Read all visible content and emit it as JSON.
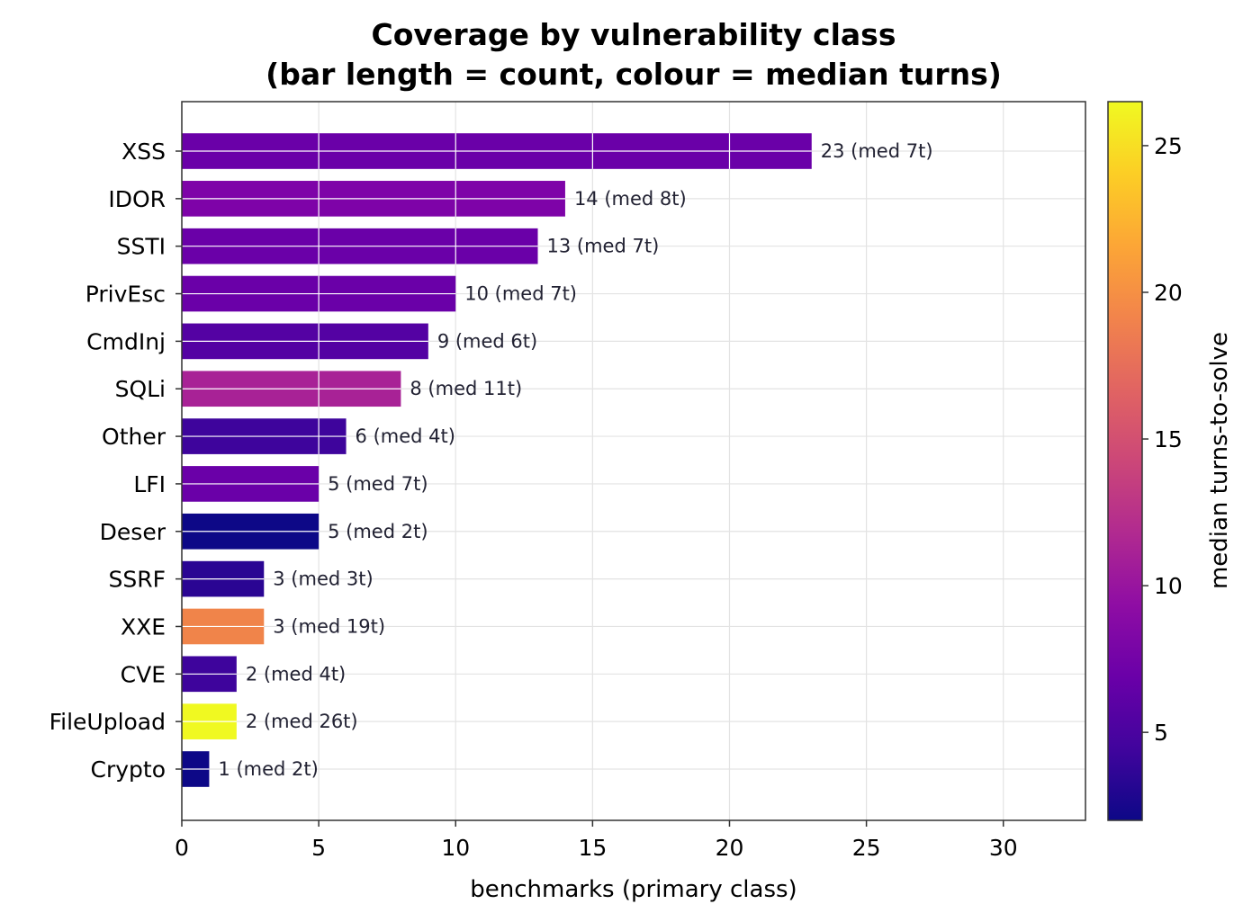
{
  "chart_data": {
    "type": "bar",
    "orientation": "horizontal",
    "title": "Coverage by vulnerability class",
    "subtitle": "(bar length = count, colour = median turns)",
    "xlabel": "benchmarks (primary class)",
    "ylabel": "",
    "xlim": [
      0,
      33
    ],
    "xticks": [
      0,
      5,
      10,
      15,
      20,
      25,
      30
    ],
    "grid": true,
    "colormap": "plasma",
    "colorbar": {
      "label": "median turns-to-solve",
      "range": [
        2,
        26.5
      ],
      "ticks": [
        5,
        10,
        15,
        20,
        25
      ]
    },
    "categories": [
      "XSS",
      "IDOR",
      "SSTI",
      "PrivEsc",
      "CmdInj",
      "SQLi",
      "Other",
      "LFI",
      "Deser",
      "SSRF",
      "XXE",
      "CVE",
      "FileUpload",
      "Crypto"
    ],
    "values": [
      23,
      14,
      13,
      10,
      9,
      8,
      6,
      5,
      5,
      3,
      3,
      2,
      2,
      1
    ],
    "median_turns": [
      7,
      8,
      7,
      7,
      6,
      11,
      4,
      7,
      2,
      3,
      19,
      4,
      26,
      2
    ],
    "bar_labels": [
      "23  (med 7t)",
      "14  (med 8t)",
      "13  (med 7t)",
      "10  (med 7t)",
      "9  (med 6t)",
      "8  (med 11t)",
      "6  (med 4t)",
      "5  (med 7t)",
      "5  (med 2t)",
      "3  (med 3t)",
      "3  (med 19t)",
      "2  (med 4t)",
      "2  (med 26t)",
      "1  (med 2t)"
    ],
    "colors": [
      "#6a00a8",
      "#7e03a8",
      "#6a00a8",
      "#6a00a8",
      "#5402a3",
      "#a82296",
      "#3e049c",
      "#6a00a8",
      "#0d0887",
      "#2a0593",
      "#f0844a",
      "#3e049c",
      "#f0f921",
      "#0d0887"
    ]
  }
}
